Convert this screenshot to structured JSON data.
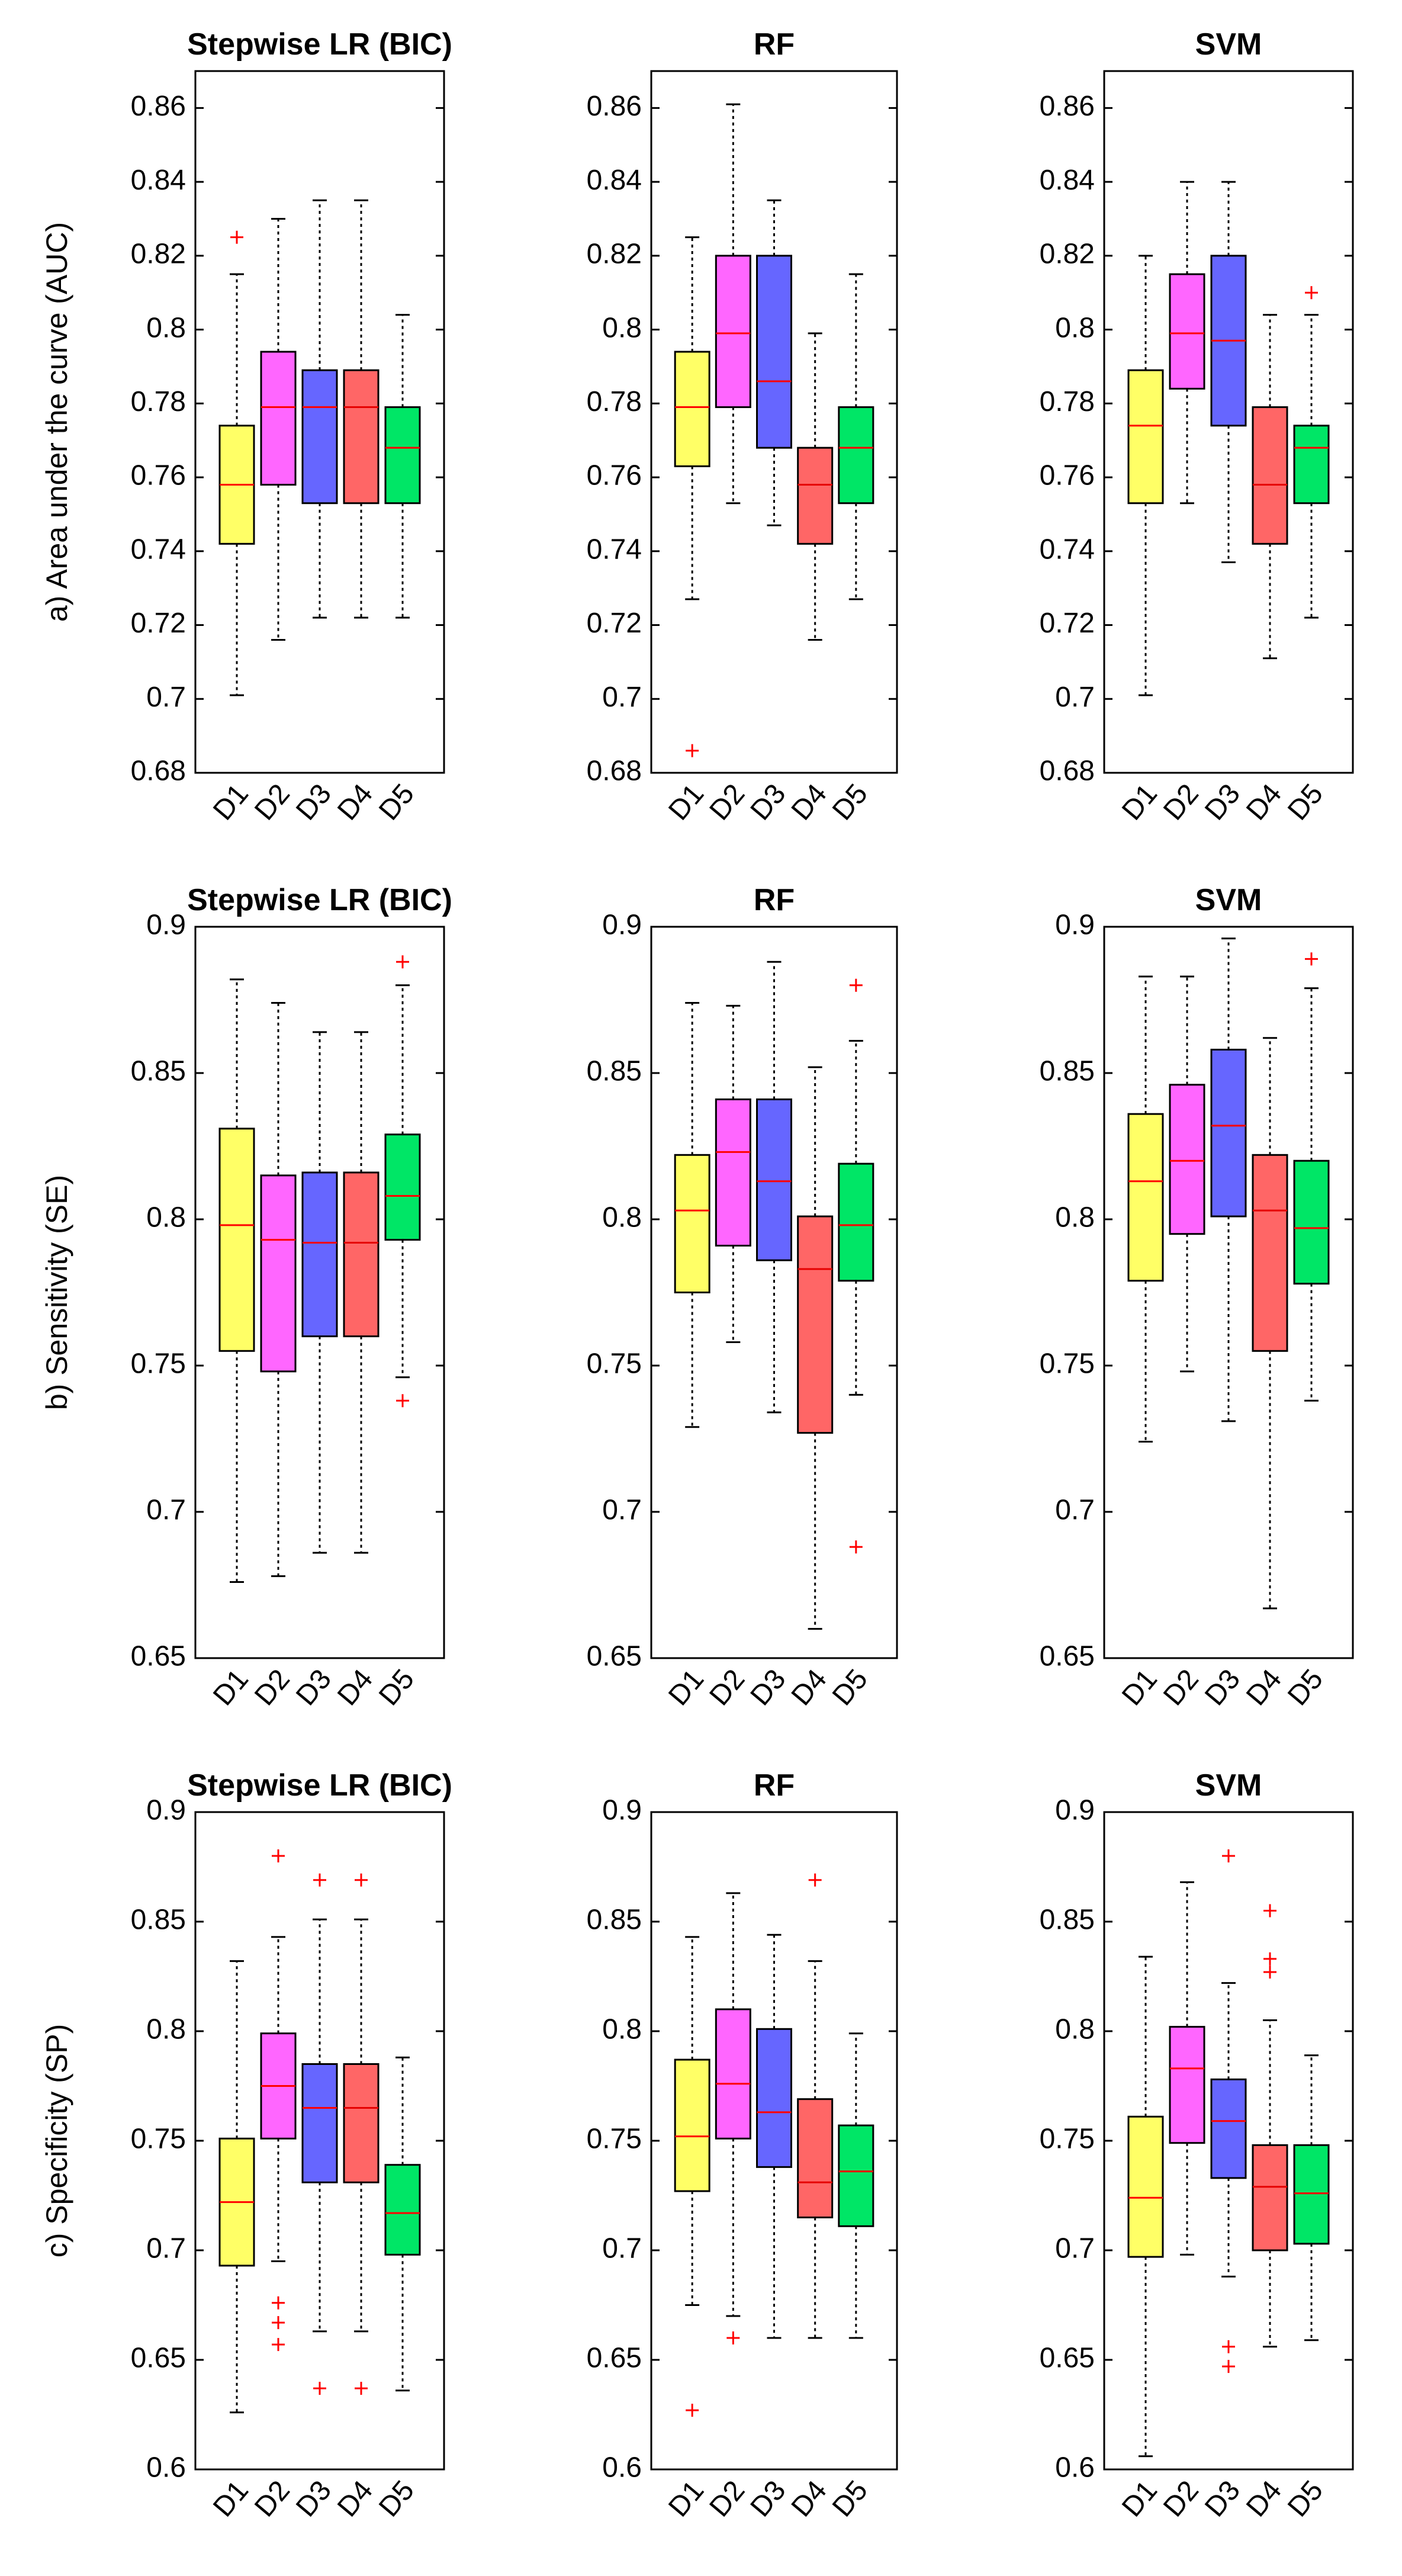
{
  "chart_data": [
    {
      "type": "box",
      "row_label": "a) Area under the curve (AUC)",
      "title": "Stepwise LR (BIC)",
      "categories": [
        "D1",
        "D2",
        "D3",
        "D4",
        "D5"
      ],
      "ylim": [
        0.68,
        0.87
      ],
      "yticks": [
        0.68,
        0.7,
        0.72,
        0.74,
        0.76,
        0.78,
        0.8,
        0.82,
        0.84,
        0.86
      ],
      "ytick_labels": [
        "0.68",
        "0.7",
        "0.72",
        "0.74",
        "0.76",
        "0.78",
        "0.8",
        "0.82",
        "0.84",
        "0.86"
      ],
      "boxes": [
        {
          "category": "D1",
          "color": "#ffff66",
          "min": 0.701,
          "q1": 0.742,
          "median": 0.758,
          "q3": 0.774,
          "max": 0.815,
          "outliers": [
            0.825
          ]
        },
        {
          "category": "D2",
          "color": "#ff66ff",
          "min": 0.716,
          "q1": 0.758,
          "median": 0.779,
          "q3": 0.794,
          "max": 0.83,
          "outliers": []
        },
        {
          "category": "D3",
          "color": "#6666ff",
          "min": 0.722,
          "q1": 0.753,
          "median": 0.779,
          "q3": 0.789,
          "max": 0.835,
          "outliers": []
        },
        {
          "category": "D4",
          "color": "#ff6666",
          "min": 0.722,
          "q1": 0.753,
          "median": 0.779,
          "q3": 0.789,
          "max": 0.835,
          "outliers": []
        },
        {
          "category": "D5",
          "color": "#00e666",
          "min": 0.722,
          "q1": 0.753,
          "median": 0.768,
          "q3": 0.779,
          "max": 0.804,
          "outliers": []
        }
      ]
    },
    {
      "type": "box",
      "title": "RF",
      "categories": [
        "D1",
        "D2",
        "D3",
        "D4",
        "D5"
      ],
      "ylim": [
        0.68,
        0.87
      ],
      "yticks": [
        0.68,
        0.7,
        0.72,
        0.74,
        0.76,
        0.78,
        0.8,
        0.82,
        0.84,
        0.86
      ],
      "ytick_labels": [
        "0.68",
        "0.7",
        "0.72",
        "0.74",
        "0.76",
        "0.78",
        "0.8",
        "0.82",
        "0.84",
        "0.86"
      ],
      "boxes": [
        {
          "category": "D1",
          "color": "#ffff66",
          "min": 0.727,
          "q1": 0.763,
          "median": 0.779,
          "q3": 0.794,
          "max": 0.825,
          "outliers": [
            0.686
          ]
        },
        {
          "category": "D2",
          "color": "#ff66ff",
          "min": 0.753,
          "q1": 0.779,
          "median": 0.799,
          "q3": 0.82,
          "max": 0.861,
          "outliers": []
        },
        {
          "category": "D3",
          "color": "#6666ff",
          "min": 0.747,
          "q1": 0.768,
          "median": 0.786,
          "q3": 0.82,
          "max": 0.835,
          "outliers": []
        },
        {
          "category": "D4",
          "color": "#ff6666",
          "min": 0.716,
          "q1": 0.742,
          "median": 0.758,
          "q3": 0.768,
          "max": 0.799,
          "outliers": []
        },
        {
          "category": "D5",
          "color": "#00e666",
          "min": 0.727,
          "q1": 0.753,
          "median": 0.768,
          "q3": 0.779,
          "max": 0.815,
          "outliers": []
        }
      ]
    },
    {
      "type": "box",
      "title": "SVM",
      "categories": [
        "D1",
        "D2",
        "D3",
        "D4",
        "D5"
      ],
      "ylim": [
        0.68,
        0.87
      ],
      "yticks": [
        0.68,
        0.7,
        0.72,
        0.74,
        0.76,
        0.78,
        0.8,
        0.82,
        0.84,
        0.86
      ],
      "ytick_labels": [
        "0.68",
        "0.7",
        "0.72",
        "0.74",
        "0.76",
        "0.78",
        "0.8",
        "0.82",
        "0.84",
        "0.86"
      ],
      "boxes": [
        {
          "category": "D1",
          "color": "#ffff66",
          "min": 0.701,
          "q1": 0.753,
          "median": 0.774,
          "q3": 0.789,
          "max": 0.82,
          "outliers": []
        },
        {
          "category": "D2",
          "color": "#ff66ff",
          "min": 0.753,
          "q1": 0.784,
          "median": 0.799,
          "q3": 0.815,
          "max": 0.84,
          "outliers": []
        },
        {
          "category": "D3",
          "color": "#6666ff",
          "min": 0.737,
          "q1": 0.774,
          "median": 0.797,
          "q3": 0.82,
          "max": 0.84,
          "outliers": []
        },
        {
          "category": "D4",
          "color": "#ff6666",
          "min": 0.711,
          "q1": 0.742,
          "median": 0.758,
          "q3": 0.779,
          "max": 0.804,
          "outliers": []
        },
        {
          "category": "D5",
          "color": "#00e666",
          "min": 0.722,
          "q1": 0.753,
          "median": 0.768,
          "q3": 0.774,
          "max": 0.804,
          "outliers": [
            0.81
          ]
        }
      ]
    },
    {
      "type": "box",
      "row_label": "b) Sensitivity (SE)",
      "title": "Stepwise LR (BIC)",
      "categories": [
        "D1",
        "D2",
        "D3",
        "D4",
        "D5"
      ],
      "ylim": [
        0.65,
        0.9
      ],
      "yticks": [
        0.65,
        0.7,
        0.75,
        0.8,
        0.85,
        0.9
      ],
      "ytick_labels": [
        "0.65",
        "0.7",
        "0.75",
        "0.8",
        "0.85",
        "0.9"
      ],
      "boxes": [
        {
          "category": "D1",
          "color": "#ffff66",
          "min": 0.676,
          "q1": 0.755,
          "median": 0.798,
          "q3": 0.831,
          "max": 0.882,
          "outliers": []
        },
        {
          "category": "D2",
          "color": "#ff66ff",
          "min": 0.678,
          "q1": 0.748,
          "median": 0.793,
          "q3": 0.815,
          "max": 0.874,
          "outliers": []
        },
        {
          "category": "D3",
          "color": "#6666ff",
          "min": 0.686,
          "q1": 0.76,
          "median": 0.792,
          "q3": 0.816,
          "max": 0.864,
          "outliers": []
        },
        {
          "category": "D4",
          "color": "#ff6666",
          "min": 0.686,
          "q1": 0.76,
          "median": 0.792,
          "q3": 0.816,
          "max": 0.864,
          "outliers": []
        },
        {
          "category": "D5",
          "color": "#00e666",
          "min": 0.746,
          "q1": 0.793,
          "median": 0.808,
          "q3": 0.829,
          "max": 0.88,
          "outliers": [
            0.888,
            0.738
          ]
        }
      ]
    },
    {
      "type": "box",
      "title": "RF",
      "categories": [
        "D1",
        "D2",
        "D3",
        "D4",
        "D5"
      ],
      "ylim": [
        0.65,
        0.9
      ],
      "yticks": [
        0.65,
        0.7,
        0.75,
        0.8,
        0.85,
        0.9
      ],
      "ytick_labels": [
        "0.65",
        "0.7",
        "0.75",
        "0.8",
        "0.85",
        "0.9"
      ],
      "boxes": [
        {
          "category": "D1",
          "color": "#ffff66",
          "min": 0.729,
          "q1": 0.775,
          "median": 0.803,
          "q3": 0.822,
          "max": 0.874,
          "outliers": []
        },
        {
          "category": "D2",
          "color": "#ff66ff",
          "min": 0.758,
          "q1": 0.791,
          "median": 0.823,
          "q3": 0.841,
          "max": 0.873,
          "outliers": []
        },
        {
          "category": "D3",
          "color": "#6666ff",
          "min": 0.734,
          "q1": 0.786,
          "median": 0.813,
          "q3": 0.841,
          "max": 0.888,
          "outliers": []
        },
        {
          "category": "D4",
          "color": "#ff6666",
          "min": 0.66,
          "q1": 0.727,
          "median": 0.783,
          "q3": 0.801,
          "max": 0.852,
          "outliers": []
        },
        {
          "category": "D5",
          "color": "#00e666",
          "min": 0.74,
          "q1": 0.779,
          "median": 0.798,
          "q3": 0.819,
          "max": 0.861,
          "outliers": [
            0.88,
            0.688
          ]
        }
      ]
    },
    {
      "type": "box",
      "title": "SVM",
      "categories": [
        "D1",
        "D2",
        "D3",
        "D4",
        "D5"
      ],
      "ylim": [
        0.65,
        0.9
      ],
      "yticks": [
        0.65,
        0.7,
        0.75,
        0.8,
        0.85,
        0.9
      ],
      "ytick_labels": [
        "0.65",
        "0.7",
        "0.75",
        "0.8",
        "0.85",
        "0.9"
      ],
      "boxes": [
        {
          "category": "D1",
          "color": "#ffff66",
          "min": 0.724,
          "q1": 0.779,
          "median": 0.813,
          "q3": 0.836,
          "max": 0.883,
          "outliers": []
        },
        {
          "category": "D2",
          "color": "#ff66ff",
          "min": 0.748,
          "q1": 0.795,
          "median": 0.82,
          "q3": 0.846,
          "max": 0.883,
          "outliers": []
        },
        {
          "category": "D3",
          "color": "#6666ff",
          "min": 0.731,
          "q1": 0.801,
          "median": 0.832,
          "q3": 0.858,
          "max": 0.896,
          "outliers": []
        },
        {
          "category": "D4",
          "color": "#ff6666",
          "min": 0.667,
          "q1": 0.755,
          "median": 0.803,
          "q3": 0.822,
          "max": 0.862,
          "outliers": []
        },
        {
          "category": "D5",
          "color": "#00e666",
          "min": 0.738,
          "q1": 0.778,
          "median": 0.797,
          "q3": 0.82,
          "max": 0.879,
          "outliers": [
            0.889
          ]
        }
      ]
    },
    {
      "type": "box",
      "row_label": "c) Specificity (SP)",
      "title": "Stepwise LR (BIC)",
      "categories": [
        "D1",
        "D2",
        "D3",
        "D4",
        "D5"
      ],
      "ylim": [
        0.6,
        0.9
      ],
      "yticks": [
        0.6,
        0.65,
        0.7,
        0.75,
        0.8,
        0.85,
        0.9
      ],
      "ytick_labels": [
        "0.6",
        "0.65",
        "0.7",
        "0.75",
        "0.8",
        "0.85",
        "0.9"
      ],
      "boxes": [
        {
          "category": "D1",
          "color": "#ffff66",
          "min": 0.626,
          "q1": 0.693,
          "median": 0.722,
          "q3": 0.751,
          "max": 0.832,
          "outliers": []
        },
        {
          "category": "D2",
          "color": "#ff66ff",
          "min": 0.695,
          "q1": 0.751,
          "median": 0.775,
          "q3": 0.799,
          "max": 0.843,
          "outliers": [
            0.88,
            0.676,
            0.667,
            0.657
          ]
        },
        {
          "category": "D3",
          "color": "#6666ff",
          "min": 0.663,
          "q1": 0.731,
          "median": 0.765,
          "q3": 0.785,
          "max": 0.851,
          "outliers": [
            0.869,
            0.637
          ]
        },
        {
          "category": "D4",
          "color": "#ff6666",
          "min": 0.663,
          "q1": 0.731,
          "median": 0.765,
          "q3": 0.785,
          "max": 0.851,
          "outliers": [
            0.869,
            0.637
          ]
        },
        {
          "category": "D5",
          "color": "#00e666",
          "min": 0.636,
          "q1": 0.698,
          "median": 0.717,
          "q3": 0.739,
          "max": 0.788,
          "outliers": []
        }
      ]
    },
    {
      "type": "box",
      "title": "RF",
      "categories": [
        "D1",
        "D2",
        "D3",
        "D4",
        "D5"
      ],
      "ylim": [
        0.6,
        0.9
      ],
      "yticks": [
        0.6,
        0.65,
        0.7,
        0.75,
        0.8,
        0.85,
        0.9
      ],
      "ytick_labels": [
        "0.6",
        "0.65",
        "0.7",
        "0.75",
        "0.8",
        "0.85",
        "0.9"
      ],
      "boxes": [
        {
          "category": "D1",
          "color": "#ffff66",
          "min": 0.675,
          "q1": 0.727,
          "median": 0.752,
          "q3": 0.787,
          "max": 0.843,
          "outliers": [
            0.627
          ]
        },
        {
          "category": "D2",
          "color": "#ff66ff",
          "min": 0.67,
          "q1": 0.751,
          "median": 0.776,
          "q3": 0.81,
          "max": 0.863,
          "outliers": [
            0.66
          ]
        },
        {
          "category": "D3",
          "color": "#6666ff",
          "min": 0.66,
          "q1": 0.738,
          "median": 0.763,
          "q3": 0.801,
          "max": 0.844,
          "outliers": []
        },
        {
          "category": "D4",
          "color": "#ff6666",
          "min": 0.66,
          "q1": 0.715,
          "median": 0.731,
          "q3": 0.769,
          "max": 0.832,
          "outliers": [
            0.869
          ]
        },
        {
          "category": "D5",
          "color": "#00e666",
          "min": 0.66,
          "q1": 0.711,
          "median": 0.736,
          "q3": 0.757,
          "max": 0.799,
          "outliers": []
        }
      ]
    },
    {
      "type": "box",
      "title": "SVM",
      "categories": [
        "D1",
        "D2",
        "D3",
        "D4",
        "D5"
      ],
      "ylim": [
        0.6,
        0.9
      ],
      "yticks": [
        0.6,
        0.65,
        0.7,
        0.75,
        0.8,
        0.85,
        0.9
      ],
      "ytick_labels": [
        "0.6",
        "0.65",
        "0.7",
        "0.75",
        "0.8",
        "0.85",
        "0.9"
      ],
      "boxes": [
        {
          "category": "D1",
          "color": "#ffff66",
          "min": 0.606,
          "q1": 0.697,
          "median": 0.724,
          "q3": 0.761,
          "max": 0.834,
          "outliers": []
        },
        {
          "category": "D2",
          "color": "#ff66ff",
          "min": 0.698,
          "q1": 0.749,
          "median": 0.783,
          "q3": 0.802,
          "max": 0.868,
          "outliers": []
        },
        {
          "category": "D3",
          "color": "#6666ff",
          "min": 0.688,
          "q1": 0.733,
          "median": 0.759,
          "q3": 0.778,
          "max": 0.822,
          "outliers": [
            0.88,
            0.656,
            0.647
          ]
        },
        {
          "category": "D4",
          "color": "#ff6666",
          "min": 0.656,
          "q1": 0.7,
          "median": 0.729,
          "q3": 0.748,
          "max": 0.805,
          "outliers": [
            0.855,
            0.833,
            0.827
          ]
        },
        {
          "category": "D5",
          "color": "#00e666",
          "min": 0.659,
          "q1": 0.703,
          "median": 0.726,
          "q3": 0.748,
          "max": 0.789,
          "outliers": []
        }
      ]
    }
  ]
}
